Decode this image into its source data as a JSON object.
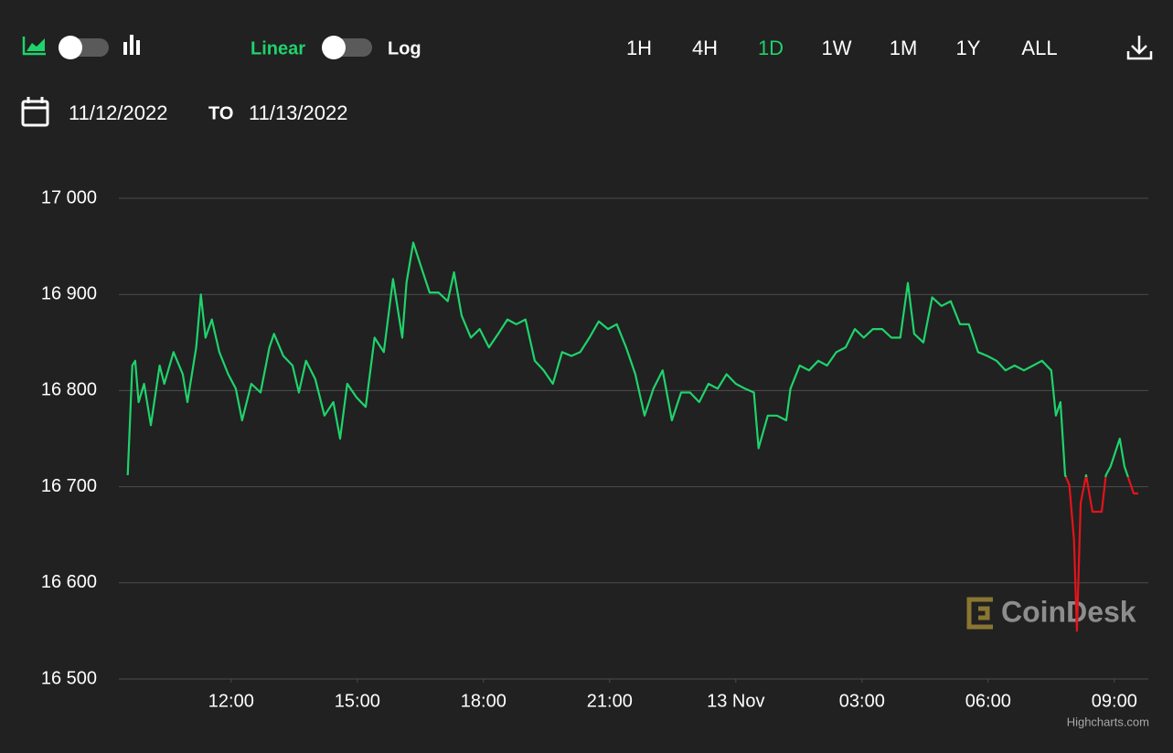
{
  "toolbar": {
    "scale_options": [
      "Linear",
      "Log"
    ],
    "ranges": [
      "1H",
      "4H",
      "1D",
      "1W",
      "1M",
      "1Y",
      "ALL"
    ],
    "active_range_index": 2
  },
  "date_range": {
    "from": "11/12/2022",
    "separator": "TO",
    "to": "11/13/2022"
  },
  "chart_data": {
    "type": "line",
    "log_scale": false,
    "grid": true,
    "watermark": "CoinDesk",
    "credits": "Highcharts.com",
    "xlim": [
      9.33,
      33.73
    ],
    "ylim": [
      16500,
      17000
    ],
    "xticks": [
      {
        "value": 12,
        "label": "12:00"
      },
      {
        "value": 15,
        "label": "15:00"
      },
      {
        "value": 18,
        "label": "18:00"
      },
      {
        "value": 21,
        "label": "21:00"
      },
      {
        "value": 24,
        "label": "13 Nov"
      },
      {
        "value": 27,
        "label": "03:00"
      },
      {
        "value": 30,
        "label": "06:00"
      },
      {
        "value": 33,
        "label": "09:00"
      }
    ],
    "yticks": [
      {
        "value": 16500,
        "label": "16 500"
      },
      {
        "value": 16600,
        "label": "16 600"
      },
      {
        "value": 16700,
        "label": "16 700"
      },
      {
        "value": 16800,
        "label": "16 800"
      },
      {
        "value": 16900,
        "label": "16 900"
      },
      {
        "value": 17000,
        "label": "17 000"
      }
    ],
    "x": [
      9.54,
      9.65,
      9.72,
      9.8,
      9.93,
      10.09,
      10.3,
      10.41,
      10.63,
      10.85,
      10.96,
      11.17,
      11.28,
      11.39,
      11.54,
      11.72,
      11.93,
      12.11,
      12.26,
      12.48,
      12.7,
      12.91,
      13.02,
      13.24,
      13.46,
      13.61,
      13.78,
      14.0,
      14.22,
      14.43,
      14.59,
      14.76,
      14.98,
      15.2,
      15.41,
      15.63,
      15.85,
      16.07,
      16.17,
      16.33,
      16.5,
      16.72,
      16.93,
      17.15,
      17.3,
      17.48,
      17.7,
      17.91,
      18.13,
      18.35,
      18.57,
      18.78,
      19.0,
      19.22,
      19.43,
      19.65,
      19.87,
      20.09,
      20.3,
      20.52,
      20.74,
      20.96,
      21.17,
      21.39,
      21.61,
      21.83,
      22.04,
      22.26,
      22.48,
      22.7,
      22.91,
      23.13,
      23.35,
      23.57,
      23.78,
      24.0,
      24.22,
      24.43,
      24.54,
      24.76,
      24.98,
      25.2,
      25.3,
      25.52,
      25.74,
      25.96,
      26.17,
      26.39,
      26.61,
      26.83,
      27.04,
      27.26,
      27.48,
      27.7,
      27.91,
      28.09,
      28.24,
      28.46,
      28.67,
      28.89,
      29.11,
      29.33,
      29.54,
      29.76,
      29.98,
      30.2,
      30.41,
      30.63,
      30.85,
      31.07,
      31.28,
      31.5,
      31.61,
      31.72,
      31.83,
      31.93,
      32.04,
      32.11,
      32.2,
      32.33,
      32.48,
      32.7,
      32.8,
      32.91,
      33.13,
      33.24,
      33.46,
      33.57
    ],
    "threshold": 16710,
    "negative_color": "#e5131b",
    "series": [
      {
        "color": "#1fd36b",
        "values": [
          16712,
          16826,
          16831,
          16788,
          16807,
          16764,
          16826,
          16807,
          16840,
          16817,
          16788,
          16845,
          16900,
          16855,
          16874,
          16840,
          16817,
          16802,
          16769,
          16807,
          16798,
          16845,
          16859,
          16836,
          16826,
          16798,
          16831,
          16812,
          16774,
          16788,
          16750,
          16807,
          16793,
          16783,
          16855,
          16840,
          16916,
          16855,
          16912,
          16954,
          16931,
          16902,
          16902,
          16893,
          16923,
          16878,
          16855,
          16864,
          16845,
          16859,
          16874,
          16869,
          16874,
          16831,
          16821,
          16807,
          16840,
          16836,
          16840,
          16855,
          16872,
          16864,
          16869,
          16845,
          16817,
          16774,
          16802,
          16821,
          16769,
          16798,
          16798,
          16788,
          16807,
          16802,
          16817,
          16807,
          16802,
          16798,
          16740,
          16774,
          16774,
          16769,
          16802,
          16826,
          16821,
          16831,
          16826,
          16840,
          16845,
          16864,
          16855,
          16864,
          16864,
          16855,
          16855,
          16912,
          16859,
          16850,
          16897,
          16888,
          16893,
          16869,
          16869,
          16840,
          16836,
          16831,
          16821,
          16826,
          16821,
          16826,
          16831,
          16821,
          16774,
          16788,
          16712,
          16702,
          16645,
          16550,
          16683,
          16712,
          16674,
          16674,
          16712,
          16721,
          16750,
          16721,
          16693,
          16693
        ]
      }
    ]
  }
}
